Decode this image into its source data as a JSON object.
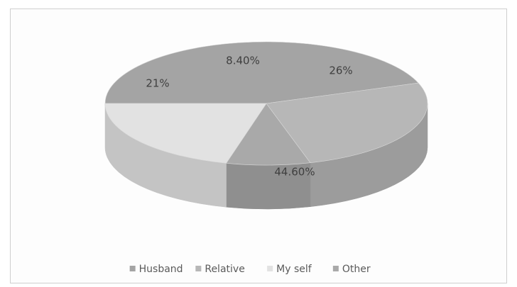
{
  "chart_data": {
    "type": "pie",
    "style": "3d",
    "title": "",
    "slices": [
      {
        "name": "Husband",
        "value": 44.6,
        "label": "44.60%",
        "color": "#a4a4a4",
        "side": "#8a8a8a"
      },
      {
        "name": "Relative",
        "value": 26,
        "label": "26%",
        "color": "#b7b7b7",
        "side": "#9c9c9c"
      },
      {
        "name": "Other",
        "value": 8.4,
        "label": "8.40%",
        "color": "#a9a9a9",
        "side": "#8f8f8f"
      },
      {
        "name": "My self",
        "value": 21,
        "label": "21%",
        "color": "#e2e2e2",
        "side": "#c4c4c4"
      }
    ],
    "legend": {
      "position": "bottom",
      "entries": [
        {
          "name": "Husband",
          "color": "#a4a4a4"
        },
        {
          "name": "Relative",
          "color": "#b7b7b7"
        },
        {
          "name": "My self",
          "color": "#e2e2e2"
        },
        {
          "name": "Other",
          "color": "#a9a9a9"
        }
      ]
    }
  }
}
